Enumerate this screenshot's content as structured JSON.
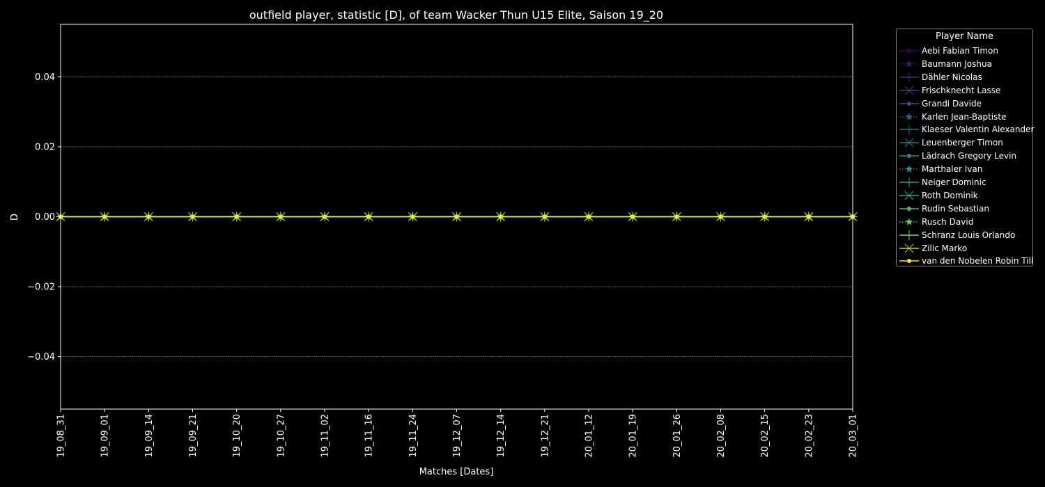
{
  "chart_data": {
    "type": "line",
    "title": "outfield player, statistic [D], of team Wacker Thun U15 Elite, Saison 19_20",
    "xlabel": "Matches [Dates]",
    "ylabel": "D",
    "ylim": [
      -0.055,
      0.055
    ],
    "yticks": [
      "0.04",
      "0.02",
      "0.00",
      "−0.02",
      "−0.04"
    ],
    "ytick_values": [
      0.04,
      0.02,
      0.0,
      -0.02,
      -0.04
    ],
    "grid": true,
    "legend_title": "Player Name",
    "legend_position": "outside-top-right",
    "categories": [
      "19_08_31",
      "19_09_01",
      "19_09_14",
      "19_09_21",
      "19_10_20",
      "19_10_27",
      "19_11_02",
      "19_11_16",
      "19_11_24",
      "19_12_07",
      "19_12_14",
      "19_12_21",
      "20_01_12",
      "20_01_19",
      "20_01_26",
      "20_02_08",
      "20_02_15",
      "20_02_23",
      "20_03_01"
    ],
    "series": [
      {
        "name": "Aebi Fabian Timon",
        "color": "#440154",
        "marker": "circle",
        "dash": "solid",
        "values": [
          0,
          0,
          0,
          0,
          0,
          0,
          0,
          0,
          0,
          0,
          0,
          0,
          0,
          0,
          0,
          0,
          0,
          0,
          0
        ]
      },
      {
        "name": "Baumann Joshua",
        "color": "#481769",
        "marker": "star",
        "dash": "dotted",
        "values": [
          0,
          0,
          0,
          0,
          0,
          0,
          0,
          0,
          0,
          0,
          0,
          0,
          0,
          0,
          0,
          0,
          0,
          0,
          0
        ]
      },
      {
        "name": "Dähler Nicolas",
        "color": "#472a7a",
        "marker": "plus",
        "dash": "solid",
        "values": [
          0,
          0,
          0,
          0,
          0,
          0,
          0,
          0,
          0,
          0,
          0,
          0,
          0,
          0,
          0,
          0,
          0,
          0,
          0
        ]
      },
      {
        "name": "Frischknecht Lasse",
        "color": "#433d84",
        "marker": "x",
        "dash": "solid",
        "values": [
          0,
          0,
          0,
          0,
          0,
          0,
          0,
          0,
          0,
          0,
          0,
          0,
          0,
          0,
          0,
          0,
          0,
          0,
          0
        ]
      },
      {
        "name": "Grandi Davide",
        "color": "#3d4e8a",
        "marker": "circle",
        "dash": "solid",
        "values": [
          0,
          0,
          0,
          0,
          0,
          0,
          0,
          0,
          0,
          0,
          0,
          0,
          0,
          0,
          0,
          0,
          0,
          0,
          0
        ]
      },
      {
        "name": "Karlen Jean-Baptiste",
        "color": "#355e8d",
        "marker": "star",
        "dash": "dotted",
        "values": [
          0,
          0,
          0,
          0,
          0,
          0,
          0,
          0,
          0,
          0,
          0,
          0,
          0,
          0,
          0,
          0,
          0,
          0,
          0
        ]
      },
      {
        "name": "Klaeser Valentin Alexander",
        "color": "#2e6d8e",
        "marker": "plus",
        "dash": "solid",
        "values": [
          0,
          0,
          0,
          0,
          0,
          0,
          0,
          0,
          0,
          0,
          0,
          0,
          0,
          0,
          0,
          0,
          0,
          0,
          0
        ]
      },
      {
        "name": "Leuenberger Timon",
        "color": "#297b8e",
        "marker": "x",
        "dash": "solid",
        "values": [
          0,
          0,
          0,
          0,
          0,
          0,
          0,
          0,
          0,
          0,
          0,
          0,
          0,
          0,
          0,
          0,
          0,
          0,
          0
        ]
      },
      {
        "name": "Lädrach Gregory Levin",
        "color": "#23898e",
        "marker": "circle",
        "dash": "solid",
        "values": [
          0,
          0,
          0,
          0,
          0,
          0,
          0,
          0,
          0,
          0,
          0,
          0,
          0,
          0,
          0,
          0,
          0,
          0,
          0
        ]
      },
      {
        "name": "Marthaler Ivan",
        "color": "#1f978b",
        "marker": "star",
        "dash": "dotted",
        "values": [
          0,
          0,
          0,
          0,
          0,
          0,
          0,
          0,
          0,
          0,
          0,
          0,
          0,
          0,
          0,
          0,
          0,
          0,
          0
        ]
      },
      {
        "name": "Neiger Dominic",
        "color": "#21a585",
        "marker": "plus",
        "dash": "solid",
        "values": [
          0,
          0,
          0,
          0,
          0,
          0,
          0,
          0,
          0,
          0,
          0,
          0,
          0,
          0,
          0,
          0,
          0,
          0,
          0
        ]
      },
      {
        "name": "Roth Dominik",
        "color": "#2eb37c",
        "marker": "x",
        "dash": "solid",
        "values": [
          0,
          0,
          0,
          0,
          0,
          0,
          0,
          0,
          0,
          0,
          0,
          0,
          0,
          0,
          0,
          0,
          0,
          0,
          0
        ]
      },
      {
        "name": "Rudin Sebastian",
        "color": "#46c06f",
        "marker": "circle",
        "dash": "solid",
        "values": [
          0,
          0,
          0,
          0,
          0,
          0,
          0,
          0,
          0,
          0,
          0,
          0,
          0,
          0,
          0,
          0,
          0,
          0,
          0
        ]
      },
      {
        "name": "Rusch David",
        "color": "#65cb5e",
        "marker": "star",
        "dash": "dotted",
        "values": [
          0,
          0,
          0,
          0,
          0,
          0,
          0,
          0,
          0,
          0,
          0,
          0,
          0,
          0,
          0,
          0,
          0,
          0,
          0
        ]
      },
      {
        "name": "Schranz Louis Orlando",
        "color": "#89d548",
        "marker": "plus",
        "dash": "solid",
        "values": [
          0,
          0,
          0,
          0,
          0,
          0,
          0,
          0,
          0,
          0,
          0,
          0,
          0,
          0,
          0,
          0,
          0,
          0,
          0
        ]
      },
      {
        "name": "Zilic Marko",
        "color": "#b0dd2f",
        "marker": "x",
        "dash": "solid",
        "values": [
          0,
          0,
          0,
          0,
          0,
          0,
          0,
          0,
          0,
          0,
          0,
          0,
          0,
          0,
          0,
          0,
          0,
          0,
          0
        ]
      },
      {
        "name": "van den Nobelen Robin Till",
        "color": "#fde725",
        "marker": "circle",
        "dash": "solid",
        "values": [
          0,
          0,
          0,
          0,
          0,
          0,
          0,
          0,
          0,
          0,
          0,
          0,
          0,
          0,
          0,
          0,
          0,
          0,
          0
        ]
      }
    ]
  }
}
